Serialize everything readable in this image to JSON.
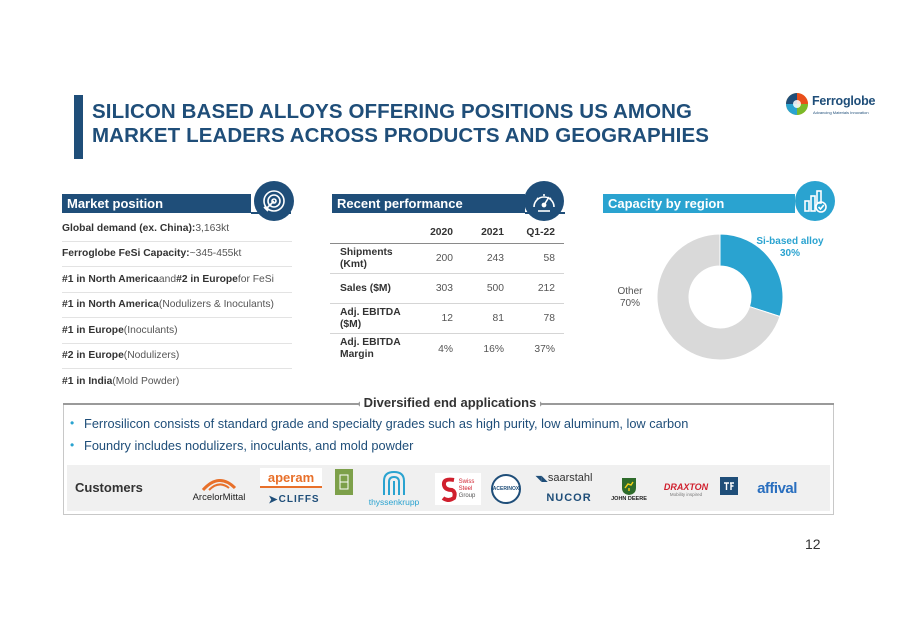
{
  "header": {
    "title": "SILICON BASED ALLOYS OFFERING POSITIONS US AMONG MARKET LEADERS ACROSS PRODUCTS AND GEOGRAPHIES",
    "logo_name": "Ferroglobe",
    "logo_tagline": "Advancing Materials Innovation"
  },
  "market_position": {
    "heading": "Market position",
    "icon": "target-icon",
    "rows": [
      {
        "bold": "Global demand (ex. China):",
        "rest": " 3,163kt"
      },
      {
        "bold": "Ferroglobe FeSi Capacity:",
        "rest": " ~345-455kt"
      },
      {
        "bold": "#1 in North America",
        "mid": " and ",
        "bold2": "#2 in Europe",
        "rest": " for FeSi"
      },
      {
        "bold": "#1 in North America",
        "rest": " (Nodulizers & Inoculants)"
      },
      {
        "bold": "#1 in Europe",
        "rest": " (Inoculants)"
      },
      {
        "bold": "#2 in Europe",
        "rest": " (Nodulizers)"
      },
      {
        "bold": "#1 in India",
        "rest": " (Mold Powder)"
      }
    ]
  },
  "recent_performance": {
    "heading": "Recent performance",
    "icon": "speedometer-icon",
    "columns": [
      "2020",
      "2021",
      "Q1-22"
    ],
    "rows": [
      {
        "label": "Shipments (Kmt)",
        "values": [
          "200",
          "243",
          "58"
        ]
      },
      {
        "label": "Sales ($M)",
        "values": [
          "303",
          "500",
          "212"
        ]
      },
      {
        "label": "Adj. EBITDA ($M)",
        "values": [
          "12",
          "81",
          "78"
        ]
      },
      {
        "label": "Adj. EBITDA Margin",
        "values": [
          "4%",
          "16%",
          "37%"
        ]
      }
    ]
  },
  "capacity": {
    "heading": "Capacity by region",
    "icon": "bar-chart-check-icon",
    "slices": [
      {
        "name": "Si-based alloy",
        "pct_label": "30%",
        "value": 30,
        "color": "#2aa3d0"
      },
      {
        "name": "Other",
        "pct_label": "70%",
        "value": 70,
        "color": "#d9d9d9"
      }
    ]
  },
  "end_applications": {
    "heading": "Diversified end applications",
    "bullets": [
      "Ferrosilicon consists of standard grade and specialty grades such as high purity, low aluminum, low carbon",
      "Foundry includes nodulizers, inoculants, and mold powder"
    ]
  },
  "customers": {
    "label": "Customers",
    "logos": {
      "arcelor": "ArcelorMittal",
      "aperam": "aperam",
      "cliffs": "CLIFFS",
      "thyssen": "thyssenkrupp",
      "swiss1": "Swiss",
      "swiss2": "Steel",
      "swiss3": "Group",
      "acerinox": "ACERINOX",
      "saarstahl": "saarstahl",
      "nucor": "NUCOR",
      "deere": "JOHN DEERE",
      "draxton": "DRAXTON",
      "draxton_tag": "Mobility inspired",
      "affival": "affival"
    }
  },
  "page_number": "12"
}
